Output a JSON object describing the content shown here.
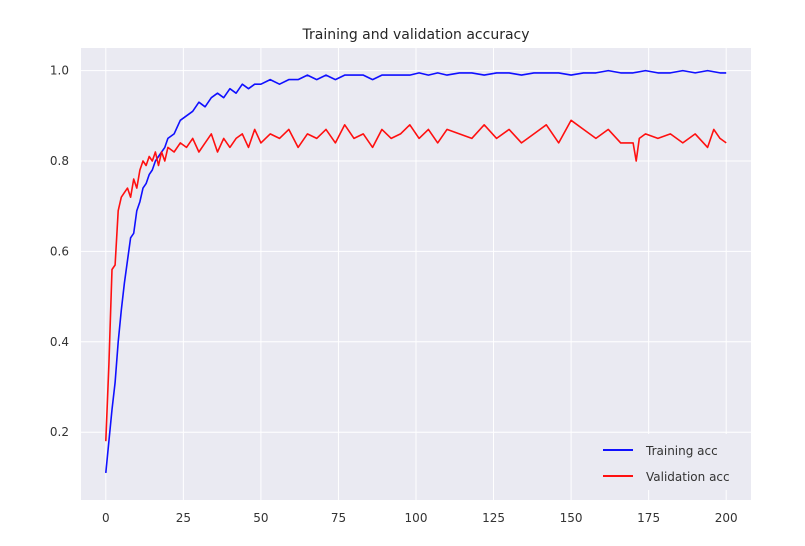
{
  "chart_data": {
    "type": "line",
    "title": "Training and validation accuracy",
    "xlabel": "",
    "ylabel": "",
    "xlim": [
      -8,
      208
    ],
    "ylim": [
      0.05,
      1.05
    ],
    "x_ticks": [
      0,
      25,
      50,
      75,
      100,
      125,
      150,
      175,
      200
    ],
    "x_tick_labels": [
      "0",
      "25",
      "50",
      "75",
      "100",
      "125",
      "150",
      "175",
      "200"
    ],
    "y_ticks": [
      0.2,
      0.4,
      0.6,
      0.8,
      1.0
    ],
    "y_tick_labels": [
      "0.2",
      "0.4",
      "0.6",
      "0.8",
      "1.0"
    ],
    "grid": true,
    "legend_position": "lower-right",
    "colors": {
      "background": "#eaeaf2",
      "grid": "#ffffff",
      "training": "#1010ff",
      "validation": "#ff1010"
    },
    "series": [
      {
        "name": "Training acc",
        "color": "#1010ff",
        "x": [
          0,
          1,
          2,
          3,
          4,
          5,
          6,
          7,
          8,
          9,
          10,
          11,
          12,
          13,
          14,
          15,
          16,
          17,
          18,
          19,
          20,
          22,
          24,
          26,
          28,
          30,
          32,
          34,
          36,
          38,
          40,
          42,
          44,
          46,
          48,
          50,
          53,
          56,
          59,
          62,
          65,
          68,
          71,
          74,
          77,
          80,
          83,
          86,
          89,
          92,
          95,
          98,
          101,
          104,
          107,
          110,
          114,
          118,
          122,
          126,
          130,
          134,
          138,
          142,
          146,
          150,
          154,
          158,
          162,
          166,
          170,
          174,
          178,
          182,
          186,
          190,
          194,
          198,
          200
        ],
        "values": [
          0.11,
          0.18,
          0.25,
          0.31,
          0.4,
          0.47,
          0.53,
          0.58,
          0.63,
          0.64,
          0.69,
          0.71,
          0.74,
          0.75,
          0.77,
          0.78,
          0.8,
          0.81,
          0.82,
          0.83,
          0.85,
          0.86,
          0.89,
          0.9,
          0.91,
          0.93,
          0.92,
          0.94,
          0.95,
          0.94,
          0.96,
          0.95,
          0.97,
          0.96,
          0.97,
          0.97,
          0.98,
          0.97,
          0.98,
          0.98,
          0.99,
          0.98,
          0.99,
          0.98,
          0.99,
          0.99,
          0.99,
          0.98,
          0.99,
          0.99,
          0.99,
          0.99,
          0.995,
          0.99,
          0.995,
          0.99,
          0.995,
          0.995,
          0.99,
          0.995,
          0.995,
          0.99,
          0.995,
          0.995,
          0.995,
          0.99,
          0.995,
          0.995,
          1.0,
          0.995,
          0.995,
          1.0,
          0.995,
          0.995,
          1.0,
          0.995,
          1.0,
          0.995,
          0.995
        ]
      },
      {
        "name": "Validation acc",
        "color": "#ff1010",
        "x": [
          0,
          1,
          2,
          3,
          4,
          5,
          6,
          7,
          8,
          9,
          10,
          11,
          12,
          13,
          14,
          15,
          16,
          17,
          18,
          19,
          20,
          22,
          24,
          26,
          28,
          30,
          32,
          34,
          36,
          38,
          40,
          42,
          44,
          46,
          48,
          50,
          53,
          56,
          59,
          62,
          65,
          68,
          71,
          74,
          77,
          80,
          83,
          86,
          89,
          92,
          95,
          98,
          101,
          104,
          107,
          110,
          114,
          118,
          122,
          126,
          130,
          134,
          138,
          142,
          146,
          150,
          154,
          158,
          162,
          166,
          170,
          171,
          172,
          174,
          178,
          182,
          186,
          190,
          194,
          196,
          198,
          200
        ],
        "values": [
          0.18,
          0.35,
          0.56,
          0.57,
          0.69,
          0.72,
          0.73,
          0.74,
          0.72,
          0.76,
          0.74,
          0.78,
          0.8,
          0.79,
          0.81,
          0.8,
          0.82,
          0.79,
          0.82,
          0.8,
          0.83,
          0.82,
          0.84,
          0.83,
          0.85,
          0.82,
          0.84,
          0.86,
          0.82,
          0.85,
          0.83,
          0.85,
          0.86,
          0.83,
          0.87,
          0.84,
          0.86,
          0.85,
          0.87,
          0.83,
          0.86,
          0.85,
          0.87,
          0.84,
          0.88,
          0.85,
          0.86,
          0.83,
          0.87,
          0.85,
          0.86,
          0.88,
          0.85,
          0.87,
          0.84,
          0.87,
          0.86,
          0.85,
          0.88,
          0.85,
          0.87,
          0.84,
          0.86,
          0.88,
          0.84,
          0.89,
          0.87,
          0.85,
          0.87,
          0.84,
          0.84,
          0.8,
          0.85,
          0.86,
          0.85,
          0.86,
          0.84,
          0.86,
          0.83,
          0.87,
          0.85,
          0.84
        ]
      }
    ]
  }
}
